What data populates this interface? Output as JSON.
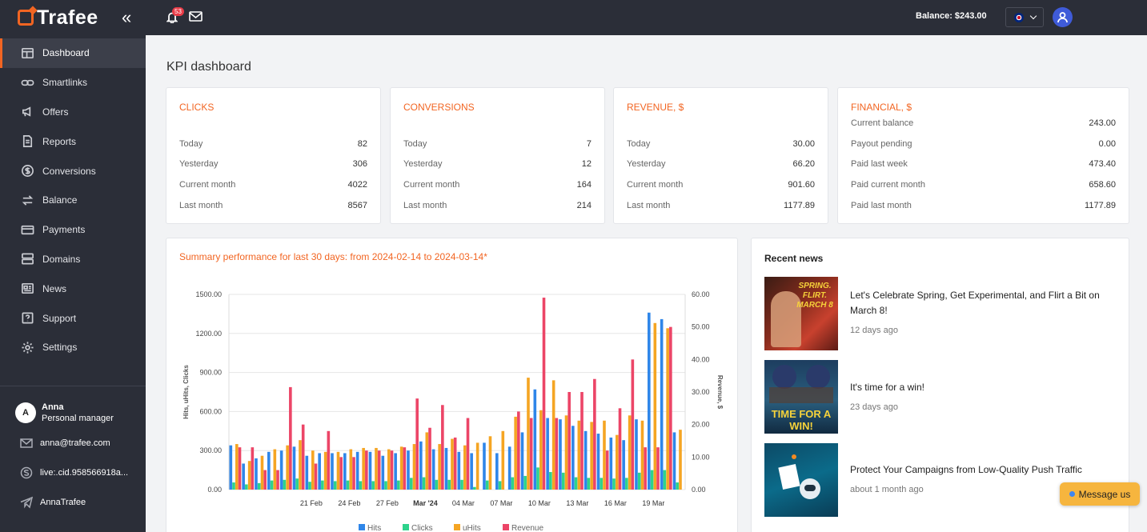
{
  "brand": {
    "name": "Trafee"
  },
  "sidebar": {
    "items": [
      {
        "label": "Dashboard",
        "icon": "dashboard-icon"
      },
      {
        "label": "Smartlinks",
        "icon": "link-icon"
      },
      {
        "label": "Offers",
        "icon": "megaphone-icon"
      },
      {
        "label": "Reports",
        "icon": "document-icon"
      },
      {
        "label": "Conversions",
        "icon": "dollar-icon"
      },
      {
        "label": "Balance",
        "icon": "transfer-icon"
      },
      {
        "label": "Payments",
        "icon": "card-icon"
      },
      {
        "label": "Domains",
        "icon": "server-icon"
      },
      {
        "label": "News",
        "icon": "newspaper-icon"
      },
      {
        "label": "Support",
        "icon": "question-icon"
      },
      {
        "label": "Settings",
        "icon": "gear-icon"
      }
    ],
    "active": "Dashboard",
    "manager": {
      "initial": "A",
      "name": "Anna",
      "role": "Personal manager"
    },
    "contacts": {
      "email": "anna@trafee.com",
      "skype": "live:.cid.958566918a...",
      "telegram": "AnnaTrafee"
    }
  },
  "topbar": {
    "notifications": "53",
    "balance": "Balance: $243.00"
  },
  "page": {
    "title": "KPI dashboard"
  },
  "kpi": {
    "clicks": {
      "title": "CLICKS",
      "rows": [
        [
          "Today",
          "82"
        ],
        [
          "Yesterday",
          "306"
        ],
        [
          "Current month",
          "4022"
        ],
        [
          "Last month",
          "8567"
        ]
      ]
    },
    "conversions": {
      "title": "CONVERSIONS",
      "rows": [
        [
          "Today",
          "7"
        ],
        [
          "Yesterday",
          "12"
        ],
        [
          "Current month",
          "164"
        ],
        [
          "Last month",
          "214"
        ]
      ]
    },
    "revenue": {
      "title": "REVENUE, $",
      "rows": [
        [
          "Today",
          "30.00"
        ],
        [
          "Yesterday",
          "66.20"
        ],
        [
          "Current month",
          "901.60"
        ],
        [
          "Last month",
          "1177.89"
        ]
      ]
    },
    "financial": {
      "title": "FINANCIAL, $",
      "rows": [
        [
          "Current balance",
          "243.00"
        ],
        [
          "Payout pending",
          "0.00"
        ],
        [
          "Paid last week",
          "473.40"
        ],
        [
          "Paid current month",
          "658.60"
        ],
        [
          "Paid last month",
          "1177.89"
        ]
      ]
    }
  },
  "chart_data": {
    "type": "bar",
    "title": "Summary performance for last 30 days: from 2024-02-14 to 2024-03-14*",
    "ylabel": "Hits, uHits, Clicks",
    "y2label": "Revenue, $",
    "ylim": [
      0,
      1500
    ],
    "y2lim": [
      0,
      60
    ],
    "yticks": [
      "0.00",
      "300.00",
      "600.00",
      "900.00",
      "1200.00",
      "1500.00"
    ],
    "y2ticks": [
      "0.00",
      "10.00",
      "20.00",
      "30.00",
      "40.00",
      "50.00",
      "60.00"
    ],
    "xticks": [
      "21 Feb",
      "24 Feb",
      "27 Feb",
      "Mar '24",
      "04 Mar",
      "07 Mar",
      "10 Mar",
      "13 Mar",
      "16 Mar",
      "19 Mar"
    ],
    "categories": [
      "15 Feb",
      "16 Feb",
      "17 Feb",
      "18 Feb",
      "19 Feb",
      "20 Feb",
      "21 Feb",
      "22 Feb",
      "23 Feb",
      "24 Feb",
      "25 Feb",
      "26 Feb",
      "27 Feb",
      "28 Feb",
      "29 Feb",
      "01 Mar",
      "02 Mar",
      "03 Mar",
      "04 Mar",
      "05 Mar",
      "06 Mar",
      "07 Mar",
      "08 Mar",
      "09 Mar",
      "10 Mar",
      "11 Mar",
      "12 Mar",
      "13 Mar",
      "14 Mar",
      "15 Mar",
      "16 Mar",
      "17 Mar",
      "18 Mar",
      "19 Mar",
      "20 Mar",
      "21 Mar"
    ],
    "series": [
      {
        "name": "Hits",
        "color": "#2f86e9",
        "axis": "left",
        "values": [
          340,
          200,
          240,
          290,
          300,
          330,
          260,
          280,
          280,
          280,
          290,
          290,
          260,
          280,
          300,
          370,
          310,
          320,
          290,
          280,
          360,
          280,
          330,
          440,
          770,
          550,
          540,
          490,
          450,
          430,
          400,
          380,
          540,
          1360,
          1310,
          440
        ]
      },
      {
        "name": "Clicks",
        "color": "#2ed38c",
        "axis": "left",
        "values": [
          55,
          40,
          50,
          70,
          75,
          85,
          60,
          70,
          65,
          70,
          65,
          65,
          65,
          70,
          90,
          95,
          75,
          75,
          75,
          20,
          70,
          65,
          95,
          105,
          170,
          135,
          130,
          95,
          90,
          90,
          85,
          90,
          130,
          150,
          150,
          55
        ]
      },
      {
        "name": "uHits",
        "color": "#f5a523",
        "axis": "left",
        "values": [
          350,
          220,
          260,
          310,
          340,
          380,
          300,
          290,
          290,
          310,
          320,
          320,
          310,
          330,
          350,
          440,
          350,
          390,
          340,
          360,
          410,
          450,
          560,
          860,
          610,
          840,
          570,
          530,
          520,
          530,
          420,
          570,
          530,
          1280,
          1240,
          460
        ]
      },
      {
        "name": "Revenue",
        "color": "#ec4567",
        "axis": "right",
        "values": [
          13,
          13,
          6,
          6,
          31.5,
          20,
          8,
          18,
          10,
          10,
          12,
          12,
          12,
          13,
          28,
          19,
          26,
          16,
          22,
          0,
          0,
          0,
          24,
          22,
          59,
          22,
          30,
          30,
          34,
          12,
          25,
          40,
          13,
          13,
          50,
          0
        ]
      }
    ],
    "grid": true,
    "legend": "bottom"
  },
  "news": {
    "title": "Recent news",
    "items": [
      {
        "headline": "Let's Celebrate Spring, Get Experimental, and Flirt a Bit on March 8!",
        "time": "12 days ago",
        "thumb_text": "SPRING. FLIRT. MARCH 8"
      },
      {
        "headline": "It's time for a win!",
        "time": "23 days ago",
        "thumb_text": "TIME FOR A WIN!"
      },
      {
        "headline": "Protect Your Campaigns from Low-Quality Push Traffic",
        "time": "about 1 month ago",
        "thumb_text": ""
      }
    ]
  },
  "message_button": {
    "label": "Message us"
  }
}
